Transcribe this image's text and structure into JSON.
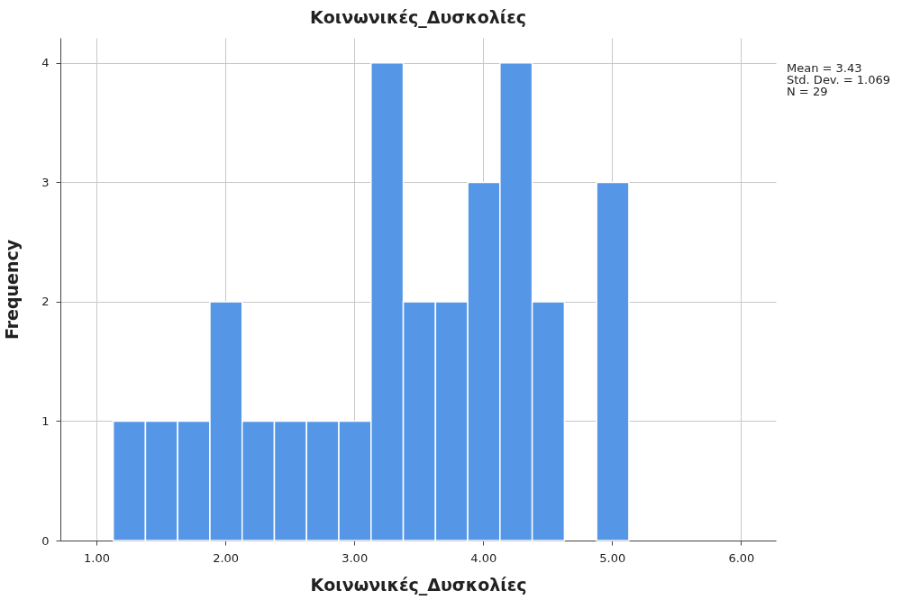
{
  "chart_data": {
    "type": "histogram",
    "title": "Κοινωνικές_Δυσκολίες",
    "xlabel": "Κοινωνικές_Δυσκολίες",
    "ylabel": "Frequency",
    "bins": [
      1.13,
      1.38,
      1.63,
      1.88,
      2.13,
      2.38,
      2.63,
      2.88,
      3.13,
      3.38,
      3.63,
      3.88,
      4.13,
      4.38,
      4.63,
      4.88,
      5.13
    ],
    "values": [
      1,
      1,
      1,
      2,
      1,
      1,
      1,
      1,
      4,
      2,
      2,
      3,
      4,
      2,
      0,
      3
    ],
    "color": "#5596e6",
    "xlim": [
      0.72,
      6.27
    ],
    "xticks": [
      {
        "value": 1,
        "label": "1.00"
      },
      {
        "value": 2,
        "label": "2.00"
      },
      {
        "value": 3,
        "label": "3.00"
      },
      {
        "value": 4,
        "label": "4.00"
      },
      {
        "value": 5,
        "label": "5.00"
      },
      {
        "value": 6,
        "label": "6.00"
      }
    ],
    "ylim": [
      0,
      4.21
    ],
    "yticks": [
      0,
      1,
      2,
      3,
      4
    ],
    "grid": true,
    "annotations": [
      "Mean = 3.43",
      "Std. Dev. = 1.069",
      "N = 29"
    ]
  }
}
